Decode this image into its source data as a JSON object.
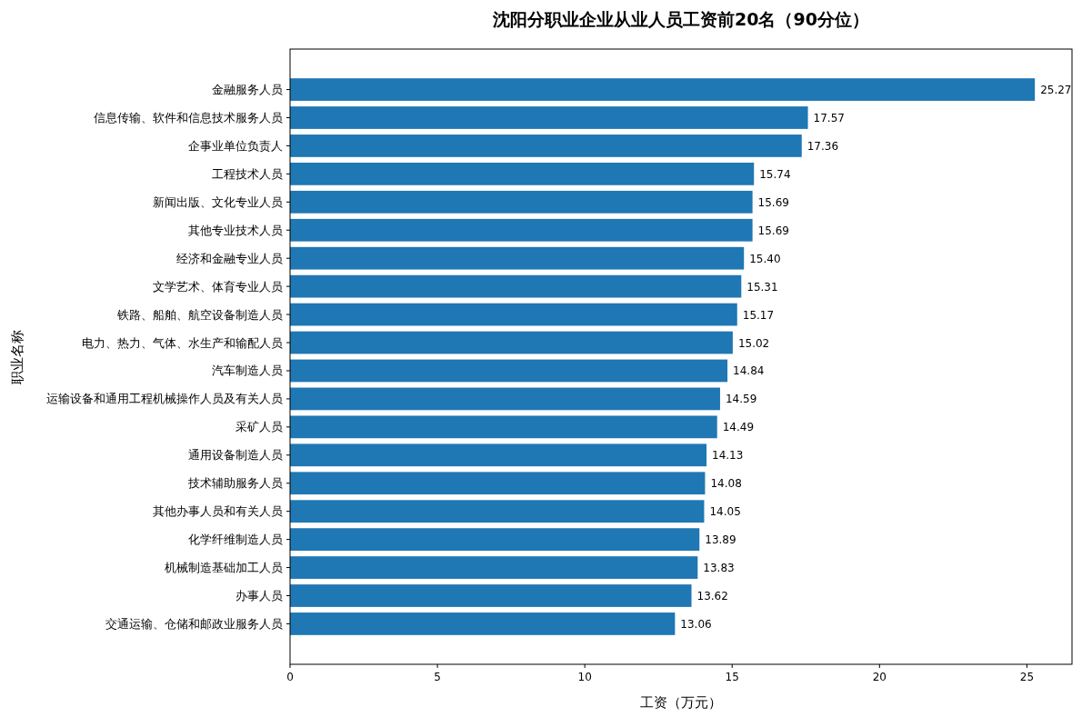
{
  "chart_data": {
    "type": "bar",
    "orientation": "horizontal",
    "title": "沈阳分职业企业从业人员工资前20名（90分位）",
    "xlabel": "工资（万元）",
    "ylabel": "职业名称",
    "categories": [
      "金融服务人员",
      "信息传输、软件和信息技术服务人员",
      "企事业单位负责人",
      "工程技术人员",
      "新闻出版、文化专业人员",
      "其他专业技术人员",
      "经济和金融专业人员",
      "文学艺术、体育专业人员",
      "铁路、船舶、航空设备制造人员",
      "电力、热力、气体、水生产和输配人员",
      "汽车制造人员",
      "运输设备和通用工程机械操作人员及有关人员",
      "采矿人员",
      "通用设备制造人员",
      "技术辅助服务人员",
      "其他办事人员和有关人员",
      "化学纤维制造人员",
      "机械制造基础加工人员",
      "办事人员",
      "交通运输、仓储和邮政业服务人员"
    ],
    "values": [
      25.27,
      17.57,
      17.36,
      15.74,
      15.69,
      15.69,
      15.4,
      15.31,
      15.17,
      15.02,
      14.84,
      14.59,
      14.49,
      14.13,
      14.08,
      14.05,
      13.89,
      13.83,
      13.62,
      13.06
    ],
    "value_labels": [
      "25.27",
      "17.57",
      "17.36",
      "15.74",
      "15.69",
      "15.69",
      "15.40",
      "15.31",
      "15.17",
      "15.02",
      "14.84",
      "14.59",
      "14.49",
      "14.13",
      "14.08",
      "14.05",
      "13.89",
      "13.83",
      "13.62",
      "13.06"
    ],
    "color": "#1f77b4",
    "xlim": [
      0,
      26.53
    ],
    "xticks": [
      0,
      5,
      10,
      15,
      20,
      25
    ]
  }
}
